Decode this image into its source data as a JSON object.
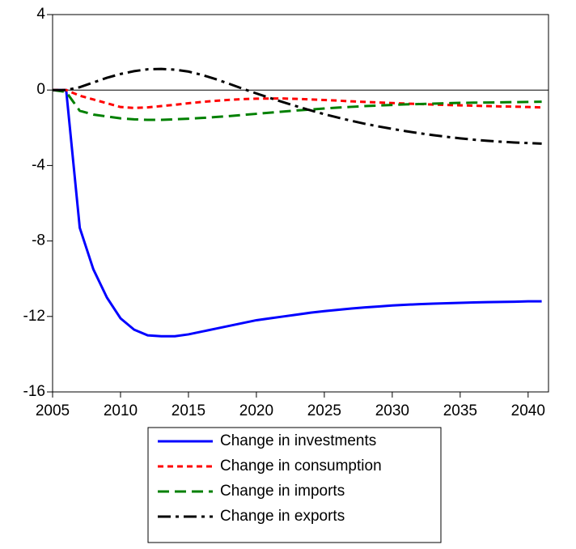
{
  "chart_data": {
    "type": "line",
    "x": [
      2005,
      2006,
      2007,
      2008,
      2009,
      2010,
      2011,
      2012,
      2013,
      2014,
      2015,
      2016,
      2017,
      2018,
      2019,
      2020,
      2021,
      2022,
      2023,
      2024,
      2025,
      2026,
      2027,
      2028,
      2029,
      2030,
      2031,
      2032,
      2033,
      2034,
      2035,
      2036,
      2037,
      2038,
      2039,
      2040,
      2041
    ],
    "series": [
      {
        "name": "Change in investments",
        "color": "#0000ff",
        "dash": "solid",
        "values": [
          0,
          0,
          -7.3,
          -9.5,
          -11,
          -12.1,
          -12.7,
          -13,
          -13.05,
          -13.05,
          -12.95,
          -12.8,
          -12.65,
          -12.5,
          -12.35,
          -12.2,
          -12.1,
          -12.0,
          -11.9,
          -11.8,
          -11.72,
          -11.65,
          -11.58,
          -11.52,
          -11.47,
          -11.42,
          -11.38,
          -11.35,
          -11.32,
          -11.3,
          -11.28,
          -11.26,
          -11.24,
          -11.23,
          -11.22,
          -11.2,
          -11.2
        ]
      },
      {
        "name": "Change in consumption",
        "color": "#ff0000",
        "dash": "short",
        "values": [
          0,
          0,
          -0.3,
          -0.5,
          -0.7,
          -0.9,
          -0.95,
          -0.92,
          -0.85,
          -0.78,
          -0.7,
          -0.63,
          -0.57,
          -0.52,
          -0.48,
          -0.46,
          -0.45,
          -0.45,
          -0.47,
          -0.5,
          -0.53,
          -0.56,
          -0.6,
          -0.63,
          -0.66,
          -0.69,
          -0.72,
          -0.74,
          -0.77,
          -0.79,
          -0.81,
          -0.83,
          -0.85,
          -0.87,
          -0.88,
          -0.9,
          -0.92
        ]
      },
      {
        "name": "Change in imports",
        "color": "#008000",
        "dash": "long",
        "values": [
          0,
          -0.1,
          -1.1,
          -1.3,
          -1.4,
          -1.5,
          -1.55,
          -1.58,
          -1.58,
          -1.55,
          -1.52,
          -1.48,
          -1.43,
          -1.38,
          -1.32,
          -1.26,
          -1.2,
          -1.14,
          -1.08,
          -1.03,
          -0.98,
          -0.93,
          -0.89,
          -0.85,
          -0.82,
          -0.79,
          -0.76,
          -0.74,
          -0.72,
          -0.7,
          -0.68,
          -0.67,
          -0.66,
          -0.65,
          -0.64,
          -0.63,
          -0.62
        ]
      },
      {
        "name": "Change in exports",
        "color": "#000000",
        "dash": "dashdot",
        "values": [
          0,
          0,
          0.15,
          0.4,
          0.65,
          0.85,
          1.0,
          1.1,
          1.12,
          1.08,
          0.98,
          0.8,
          0.58,
          0.33,
          0.07,
          -0.18,
          -0.42,
          -0.65,
          -0.87,
          -1.08,
          -1.28,
          -1.46,
          -1.63,
          -1.79,
          -1.93,
          -2.06,
          -2.18,
          -2.29,
          -2.39,
          -2.48,
          -2.56,
          -2.63,
          -2.69,
          -2.74,
          -2.78,
          -2.81,
          -2.84
        ]
      }
    ],
    "xlim": [
      2005,
      2041.5
    ],
    "xticks": [
      2005,
      2010,
      2015,
      2020,
      2025,
      2030,
      2035,
      2040
    ],
    "ylim": [
      -16,
      4
    ],
    "yticks": [
      -16,
      -12,
      -8,
      -4,
      0,
      4
    ],
    "zero_line": true,
    "grid": false,
    "legend": "bottom"
  }
}
